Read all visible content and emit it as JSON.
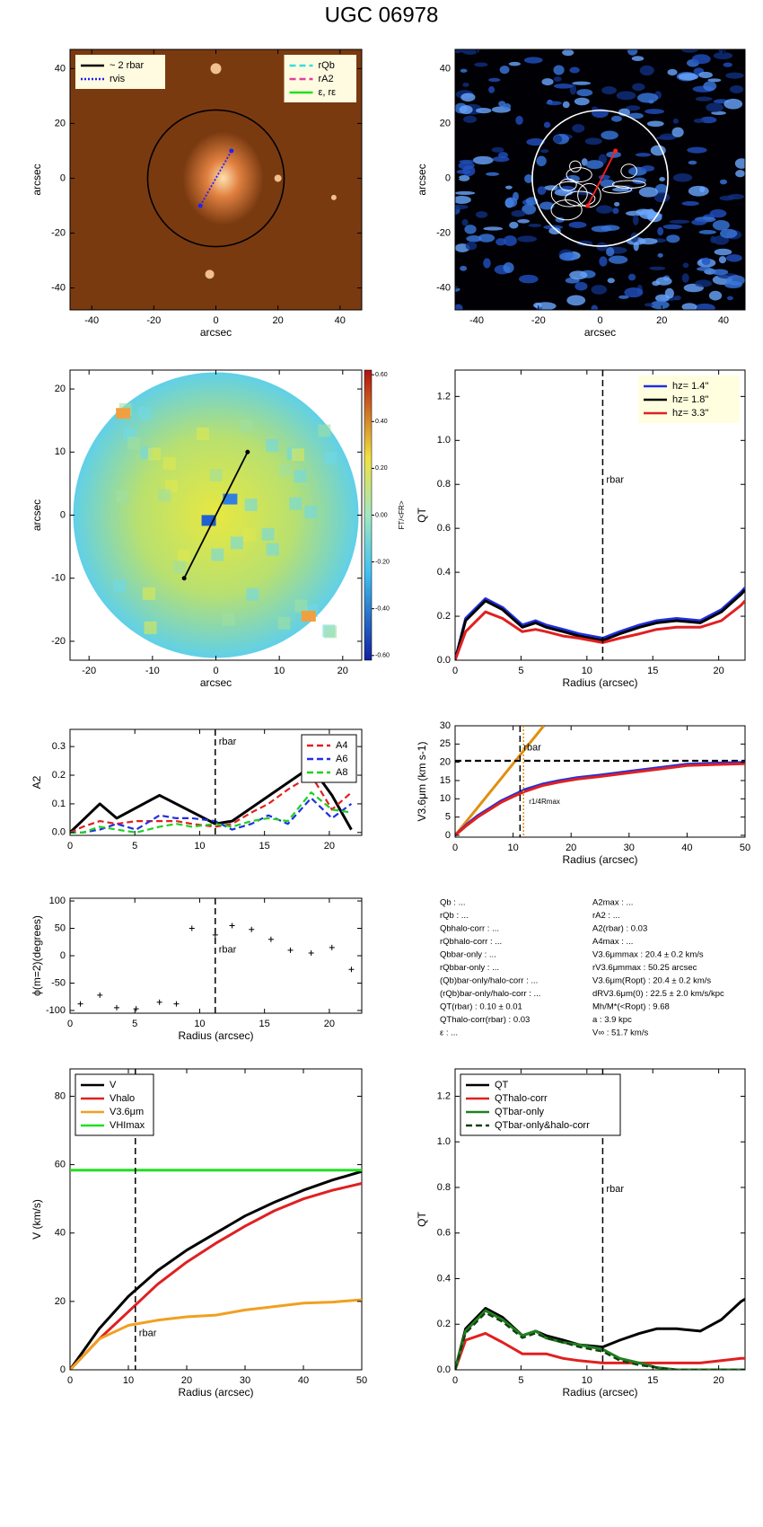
{
  "title": "UGC 06978",
  "chart_data": [
    {
      "type": "image",
      "style": "brown",
      "xlim": [
        -47,
        47
      ],
      "ylim": [
        -48,
        47
      ],
      "xticks": [
        -40,
        -20,
        0,
        20,
        40
      ],
      "yticks": [
        -40,
        -20,
        0,
        20,
        40
      ],
      "xlabel": "arcsec",
      "ylabel": "arcsec",
      "circle_r": 22,
      "circle_color": "#000000",
      "bar": [
        [
          -5,
          -10
        ],
        [
          5,
          10
        ]
      ],
      "bar_color": "#2020ff",
      "bar_dash": "dotted",
      "legends": [
        {
          "corner": "upper left",
          "bg": "#fffbe0",
          "entries": [
            {
              "name": "~ 2 rbar",
              "color": "#000000",
              "dash": "solid"
            },
            {
              "name": "rvis",
              "color": "#2020ff",
              "dash": "dotted"
            }
          ]
        },
        {
          "corner": "upper right",
          "bg": "#fffbe0",
          "entries": [
            {
              "name": "rQb",
              "color": "#30e0e0",
              "dash": "dashed"
            },
            {
              "name": "rA2",
              "color": "#e040a0",
              "dash": "dashed"
            },
            {
              "name": "ε, rε",
              "color": "#20e020",
              "dash": "solid"
            }
          ]
        }
      ]
    },
    {
      "type": "image",
      "style": "blue",
      "xlim": [
        -47,
        47
      ],
      "ylim": [
        -48,
        47
      ],
      "xticks": [
        -40,
        -20,
        0,
        20,
        40
      ],
      "yticks": [
        -40,
        -20,
        0,
        20,
        40
      ],
      "xlabel": "arcsec",
      "ylabel": "arcsec",
      "circle_r": 22,
      "circle_color": "#ffffff",
      "bar": [
        [
          -4,
          -10
        ],
        [
          5,
          10
        ]
      ],
      "bar_color": "#ff2020",
      "bar_dash": "solid"
    },
    {
      "type": "image",
      "style": "velocity",
      "xlim": [
        -23,
        23
      ],
      "ylim": [
        -23,
        23
      ],
      "xticks": [
        -20,
        -10,
        0,
        10,
        20
      ],
      "yticks": [
        -20,
        -10,
        0,
        10,
        20
      ],
      "xlabel": "arcsec",
      "ylabel": "arcsec",
      "circle_r": 22.5,
      "circle_color": "none",
      "bar": [
        [
          -5,
          -10
        ],
        [
          5,
          10
        ]
      ],
      "bar_color": "#000000",
      "bar_dash": "solid",
      "colorbar": {
        "label": "FT/<FR>",
        "clim": [
          -0.62,
          0.62
        ],
        "ticks": [
          {
            "value": 0.6,
            "label": "0.60"
          },
          {
            "value": 0.4,
            "label": "0.40"
          },
          {
            "value": 0.2,
            "label": "0.20"
          },
          {
            "value": 0,
            "label": "0.00"
          },
          {
            "value": -0.2,
            "label": "-0.20"
          },
          {
            "value": -0.4,
            "label": "-0.40"
          },
          {
            "value": -0.6,
            "label": "-0.60"
          }
        ]
      }
    },
    {
      "type": "line",
      "xlim": [
        0,
        22
      ],
      "ylim": [
        0,
        1.32
      ],
      "xticks": [
        0,
        5,
        10,
        15,
        20
      ],
      "yticks": [
        {
          "value": 0,
          "label": "0.0"
        },
        0.2,
        0.4,
        0.6,
        0.8,
        {
          "value": 1,
          "label": "1.0"
        },
        1.2
      ],
      "xlabel": "Radius (arcsec)",
      "ylabel": "QT",
      "legend_corner": "upper right",
      "legend_bg": "#ffffe0",
      "legend_text_colored": true,
      "vlines": [
        {
          "x": 11.2,
          "label": "rbar",
          "color": "#000000",
          "dash": "dashed"
        }
      ],
      "x": [
        0,
        0.8,
        2.3,
        3.6,
        5.1,
        6.1,
        6.9,
        8.2,
        9.4,
        11.2,
        12.5,
        14,
        15.3,
        16.8,
        18.6,
        20.2,
        21.7,
        22
      ],
      "series": [
        {
          "name": "hz=  1.4''",
          "color": "#2030e0",
          "dash": "solid",
          "values": [
            0,
            0.19,
            0.28,
            0.24,
            0.16,
            0.18,
            0.16,
            0.14,
            0.12,
            0.1,
            0.13,
            0.16,
            0.18,
            0.19,
            0.18,
            0.23,
            0.31,
            0.33
          ]
        },
        {
          "name": "hz=  1.8''",
          "color": "#000000",
          "dash": "solid",
          "values": [
            0,
            0.18,
            0.27,
            0.23,
            0.15,
            0.17,
            0.15,
            0.13,
            0.11,
            0.09,
            0.12,
            0.15,
            0.17,
            0.18,
            0.17,
            0.22,
            0.3,
            0.32
          ]
        },
        {
          "name": "hz=  3.3''",
          "color": "#e02020",
          "dash": "solid",
          "values": [
            0,
            0.13,
            0.22,
            0.19,
            0.13,
            0.14,
            0.13,
            0.11,
            0.1,
            0.08,
            0.1,
            0.12,
            0.14,
            0.15,
            0.15,
            0.18,
            0.25,
            0.27
          ]
        }
      ]
    },
    {
      "type": "line",
      "xlim": [
        0,
        22.5
      ],
      "ylim": [
        -0.01,
        0.36
      ],
      "xticks": [
        0,
        5,
        10,
        15,
        20
      ],
      "yticks": [
        {
          "value": 0,
          "label": "0.0"
        },
        0.1,
        0.2,
        0.3
      ],
      "ylabel": "A2",
      "legend_corner": "upper right",
      "legend_bg": "#ffffff",
      "legend_text_colored": false,
      "vlines": [
        {
          "x": 11.2,
          "label": "rbar",
          "color": "#000000",
          "dash": "dashed"
        }
      ],
      "x": [
        0,
        1,
        2.3,
        3.6,
        5.1,
        6.9,
        8.2,
        9.4,
        11.2,
        12.5,
        14,
        15.3,
        16.8,
        18.6,
        20.2,
        21.7
      ],
      "series": [
        {
          "color": "#000000",
          "dash": "solid",
          "x": [
            0,
            2.3,
            3.6,
            6.9,
            11.2,
            12.5,
            18.6,
            20.2,
            21.7
          ],
          "values": [
            0,
            0.1,
            0.05,
            0.13,
            0.03,
            0.04,
            0.23,
            0.13,
            0.01
          ]
        },
        {
          "name": "A4",
          "color": "#e02020",
          "dash": "dashed",
          "values": [
            0,
            0.02,
            0.04,
            0.03,
            0.04,
            0.04,
            0.04,
            0.03,
            0.02,
            0.03,
            0.07,
            0.1,
            0.15,
            0.2,
            0.08,
            0.14
          ]
        },
        {
          "name": "A6",
          "color": "#2030e0",
          "dash": "dashed",
          "values": [
            0,
            0,
            0.01,
            0.03,
            0.01,
            0.06,
            0.05,
            0.05,
            0.04,
            0.01,
            0.03,
            0.06,
            0.03,
            0.12,
            0.05,
            0.1
          ]
        },
        {
          "name": "A8",
          "color": "#20d020",
          "dash": "dashed",
          "values": [
            0,
            0,
            0.02,
            0.01,
            0,
            0.02,
            0.03,
            0.02,
            0.03,
            0.02,
            0.04,
            0.05,
            0.04,
            0.14,
            0.08,
            0.07
          ]
        }
      ]
    },
    {
      "type": "line",
      "xlim": [
        0,
        50
      ],
      "ylim": [
        -0.5,
        30
      ],
      "xticks": [
        0,
        10,
        20,
        30,
        40,
        50
      ],
      "yticks": [
        0,
        5,
        10,
        15,
        20,
        25,
        30
      ],
      "xlabel": "Radius (arcsec)",
      "ylabel": "V3.6μm (km s-1)",
      "vlines": [
        {
          "x": 11.2,
          "label": "rbar",
          "color": "#000000",
          "dash": "dashed"
        },
        {
          "x": 11.8,
          "label": "r1/4Rmax",
          "color": "#e09010",
          "dash": "dotted"
        }
      ],
      "x": [
        0,
        2,
        4,
        6,
        8,
        10,
        12,
        15,
        18,
        21,
        25,
        30,
        35,
        40,
        45,
        50
      ],
      "series": [
        {
          "color": "#e09010",
          "dash": "solid",
          "x": [
            0,
            15.3
          ],
          "values": [
            0,
            30
          ]
        },
        {
          "color": "#000000",
          "dash": "dashed",
          "x": [
            0,
            50
          ],
          "values": [
            20.4,
            20.4
          ]
        },
        {
          "color": "#2030e0",
          "dash": "solid",
          "values": [
            0,
            3,
            5.5,
            7.5,
            9.5,
            11,
            12.5,
            14,
            15,
            15.8,
            16.5,
            17.5,
            18.5,
            19.5,
            19.8,
            20
          ]
        },
        {
          "color": "#e02020",
          "dash": "solid",
          "values": [
            0,
            2.7,
            5.1,
            7.1,
            9.1,
            10.6,
            12,
            13.6,
            14.6,
            15.4,
            16.1,
            17.1,
            18.1,
            19.1,
            19.4,
            19.6
          ]
        }
      ]
    },
    {
      "type": "scatter",
      "xlim": [
        0,
        22.5
      ],
      "ylim": [
        -105,
        105
      ],
      "xticks": [
        0,
        5,
        10,
        15,
        20
      ],
      "yticks": [
        -100,
        -50,
        0,
        50,
        100
      ],
      "xlabel": "Radius (arcsec)",
      "ylabel": "ϕ(m=2)(degrees)",
      "vlines": [
        {
          "x": 11.2,
          "label": "rbar",
          "color": "#000000",
          "dash": "dashed"
        }
      ],
      "x": [
        0.8,
        2.3,
        3.6,
        5.1,
        6.9,
        8.2,
        9.4,
        11.2,
        12.5,
        14,
        15.5,
        17,
        18.6,
        20.2,
        21.7
      ],
      "values": [
        -88,
        -72,
        -95,
        -97,
        -85,
        -88,
        50,
        38,
        55,
        48,
        30,
        10,
        5,
        15,
        -25
      ]
    },
    {
      "type": "text",
      "columns": [
        [
          "Qb : ...",
          "rQb : ...",
          "Qbhalo-corr : ...",
          "rQbhalo-corr : ...",
          "Qbbar-only : ...",
          "rQbbar-only : ...",
          "(Qb)bar-only/halo-corr : ...",
          "(rQb)bar-only/halo-corr : ...",
          "QT(rbar) :  0.10 ± 0.01",
          "QThalo-corr(rbar) :  0.03",
          "ε : ..."
        ],
        [
          "A2max : ...",
          "rA2 : ...",
          "A2(rbar) :  0.03",
          "A4max : ...",
          "V3.6μmmax :  20.4 ± 0.2 km/s",
          "rV3.6μmmax :  50.25 arcsec",
          "V3.6μm(Ropt) :  20.4 ± 0.2 km/s",
          "dRV3.6μm(0) :  22.5 ± 2.0 km/s/kpc",
          "Mh/M*(<Ropt) :  9.68",
          "a :  3.9 kpc",
          "V∞ :  51.7 km/s"
        ]
      ]
    },
    {
      "type": "line",
      "xlim": [
        0,
        50
      ],
      "ylim": [
        0,
        88
      ],
      "xticks": [
        0,
        10,
        20,
        30,
        40,
        50
      ],
      "yticks": [
        0,
        20,
        40,
        60,
        80
      ],
      "xlabel": "Radius (arcsec)",
      "ylabel": "V (km/s)",
      "legend_corner": "upper left",
      "legend_bg": "#ffffff",
      "legend_text_colored": false,
      "vlines": [
        {
          "x": 11.2,
          "label": "rbar",
          "color": "#000000",
          "dash": "dashed"
        }
      ],
      "x": [
        0,
        5,
        10,
        15,
        20,
        25,
        30,
        35,
        40,
        45,
        50
      ],
      "series": [
        {
          "name": "V",
          "color": "#000000",
          "dash": "solid",
          "values": [
            0,
            12,
            21.5,
            29,
            35,
            40,
            45,
            49,
            52.5,
            55.5,
            58
          ]
        },
        {
          "name": "Vhalo",
          "color": "#e02020",
          "dash": "solid",
          "values": [
            0,
            9,
            17,
            25,
            31.5,
            37,
            42,
            46.5,
            50,
            52.5,
            54.5
          ]
        },
        {
          "name": "V3.6μm",
          "color": "#f0a020",
          "dash": "solid",
          "values": [
            0,
            9,
            13,
            14.5,
            15.5,
            16,
            17.5,
            18.5,
            19.5,
            19.8,
            20.5
          ]
        },
        {
          "name": "VHImax",
          "color": "#20e020",
          "dash": "solid",
          "x": [
            0,
            50
          ],
          "values": [
            58.4,
            58.4
          ]
        }
      ]
    },
    {
      "type": "line",
      "xlim": [
        0,
        22
      ],
      "ylim": [
        0,
        1.32
      ],
      "xticks": [
        0,
        5,
        10,
        15,
        20
      ],
      "yticks": [
        {
          "value": 0,
          "label": "0.0"
        },
        0.2,
        0.4,
        0.6,
        0.8,
        {
          "value": 1,
          "label": "1.0"
        },
        1.2
      ],
      "xlabel": "Radius (arcsec)",
      "ylabel": "QT",
      "legend_corner": "upper left",
      "legend_bg": "#ffffff",
      "legend_text_colored": false,
      "vlines": [
        {
          "x": 11.2,
          "label": "rbar",
          "color": "#000000",
          "dash": "dashed"
        }
      ],
      "x": [
        0,
        0.8,
        2.3,
        3.6,
        5.1,
        6.1,
        6.9,
        8.2,
        9.4,
        11.2,
        12.5,
        14,
        15.3,
        16.8,
        18.6,
        20.2,
        21.7,
        22
      ],
      "series": [
        {
          "name": "QT",
          "color": "#000000",
          "dash": "solid",
          "values": [
            0,
            0.18,
            0.27,
            0.23,
            0.15,
            0.17,
            0.15,
            0.13,
            0.11,
            0.1,
            0.13,
            0.16,
            0.18,
            0.18,
            0.17,
            0.22,
            0.3,
            0.31
          ]
        },
        {
          "name": "QThalo-corr",
          "color": "#e02020",
          "dash": "solid",
          "values": [
            0,
            0.13,
            0.16,
            0.12,
            0.07,
            0.07,
            0.07,
            0.05,
            0.04,
            0.03,
            0.03,
            0.03,
            0.03,
            0.03,
            0.03,
            0.04,
            0.05,
            0.05
          ]
        },
        {
          "name": "QTbar-only",
          "color": "#208020",
          "dash": "solid",
          "values": [
            0,
            0.17,
            0.26,
            0.22,
            0.15,
            0.17,
            0.14,
            0.12,
            0.11,
            0.09,
            0.05,
            0.03,
            0.01,
            0,
            0,
            0,
            0,
            0
          ]
        },
        {
          "name": "QTbar-only&halo-corr",
          "color": "#104010",
          "dash": "dashed",
          "values": [
            0,
            0.16,
            0.25,
            0.21,
            0.14,
            0.16,
            0.14,
            0.12,
            0.1,
            0.08,
            0.04,
            0.02,
            0.01,
            0,
            0,
            0,
            0,
            0
          ]
        }
      ]
    }
  ]
}
